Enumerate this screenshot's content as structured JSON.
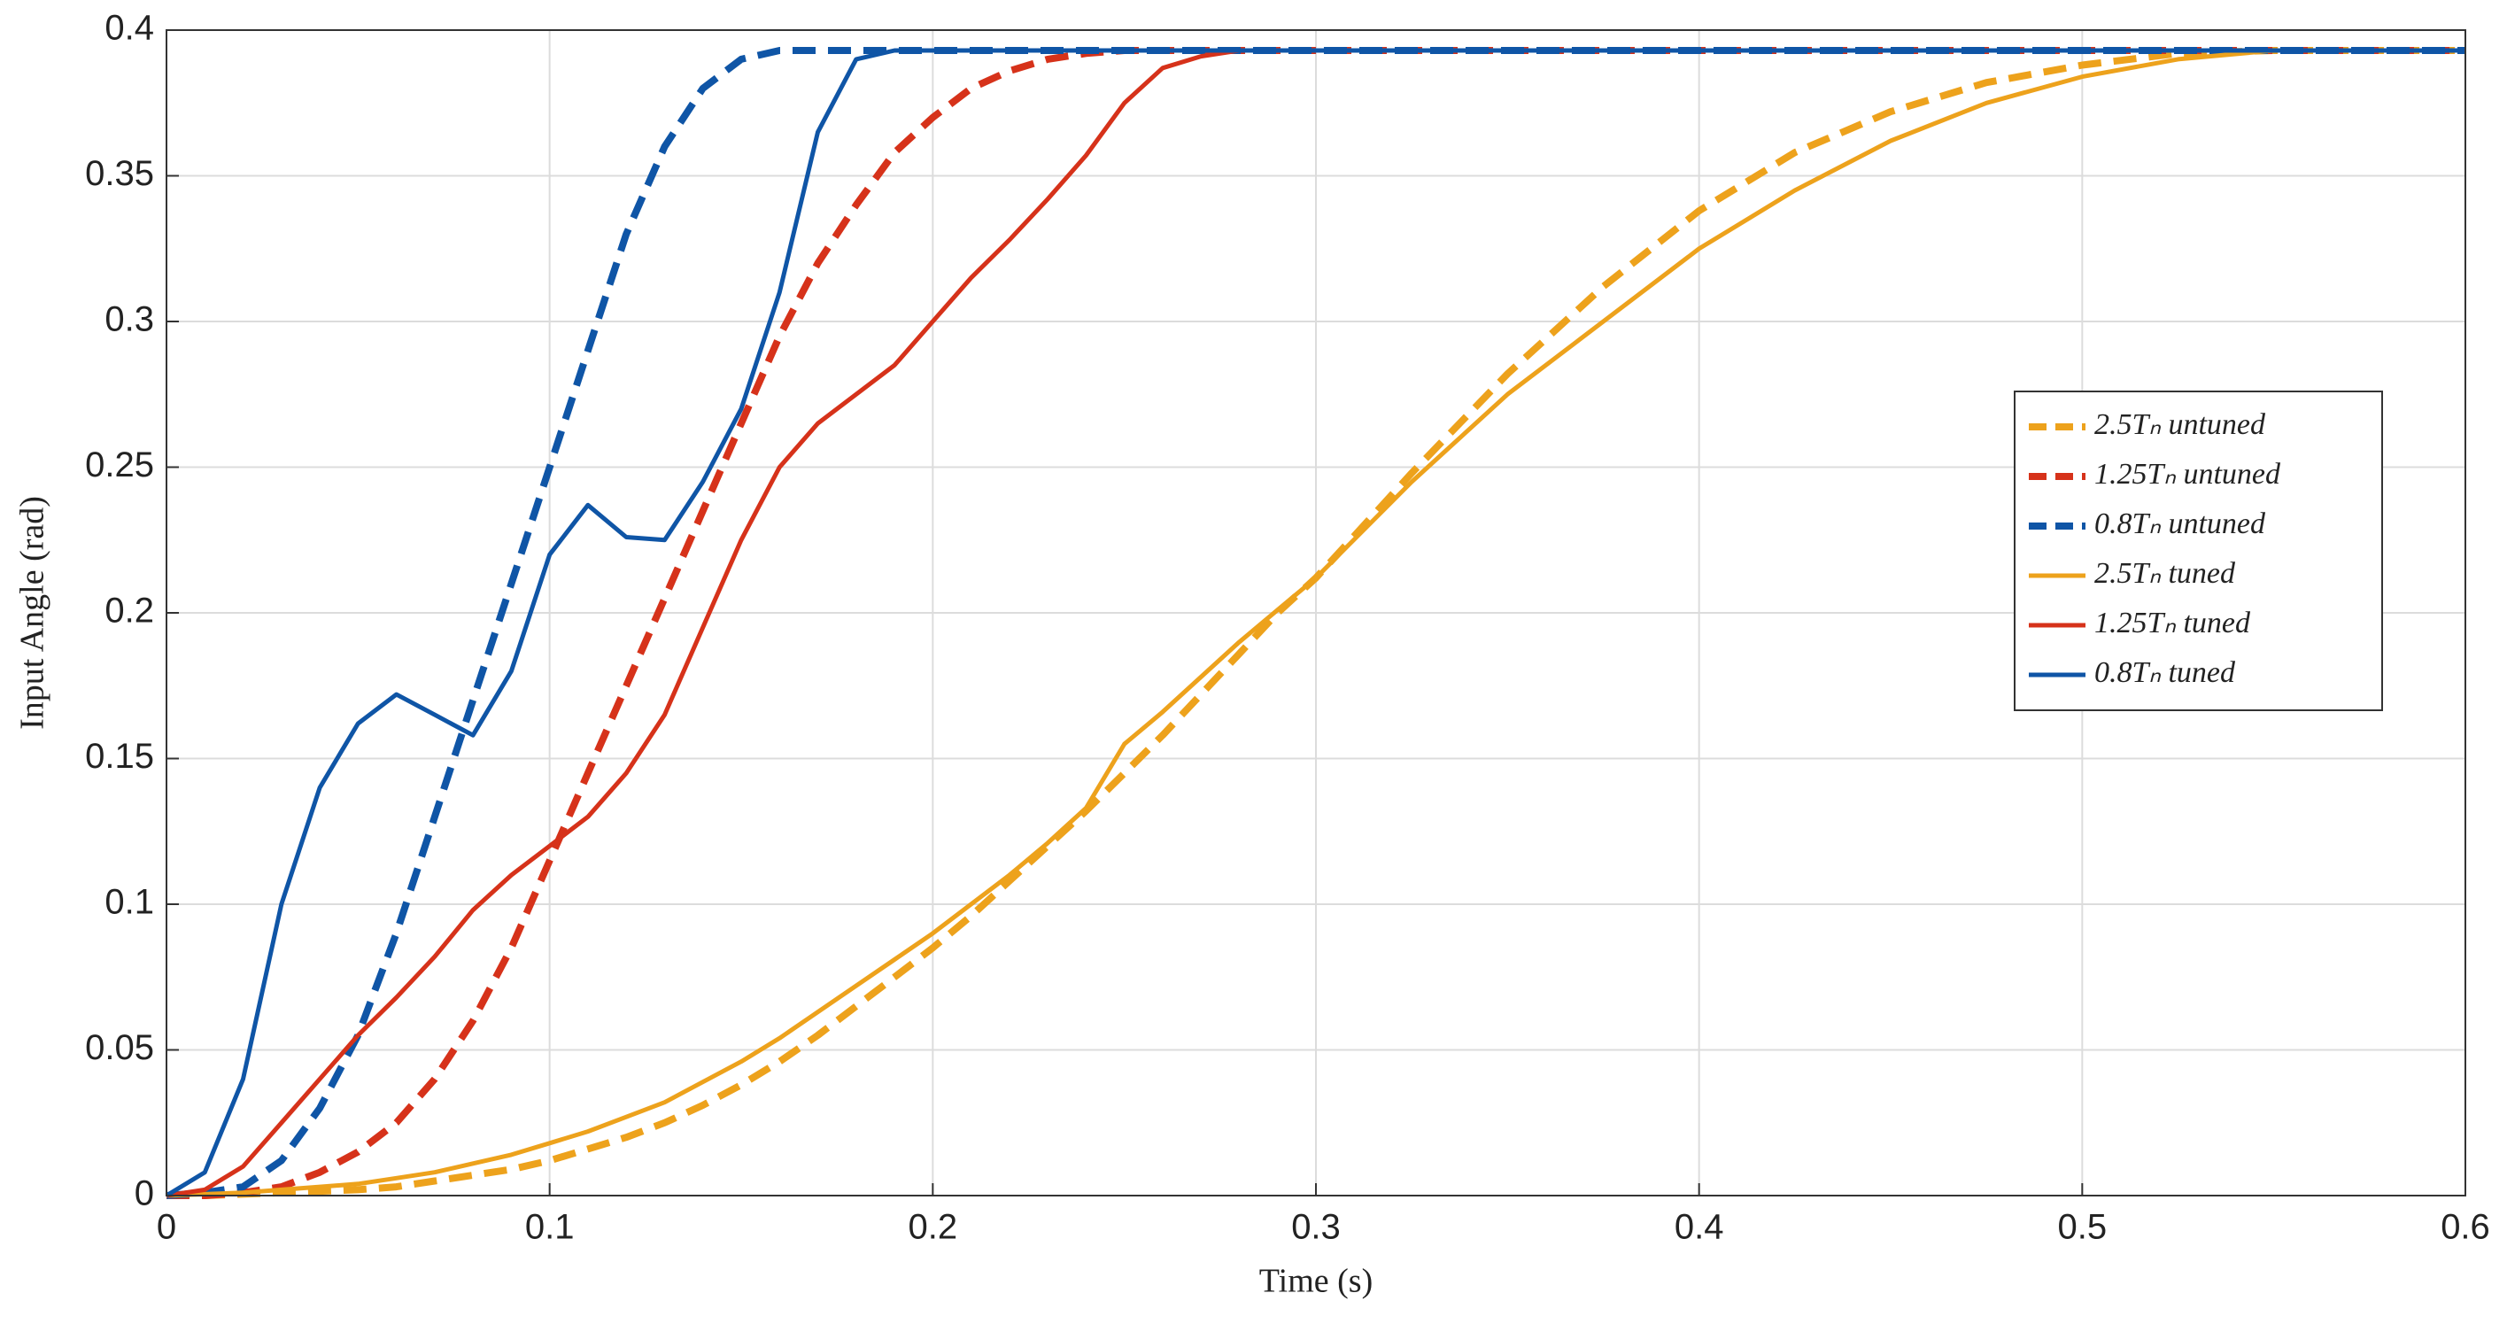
{
  "chart_data": {
    "type": "line",
    "xlabel": "Time (s)",
    "ylabel": "Input Angle (rad)",
    "x": [
      0,
      0.01,
      0.02,
      0.03,
      0.04,
      0.05,
      0.06,
      0.07,
      0.08,
      0.09,
      0.1,
      0.11,
      0.12,
      0.13,
      0.14,
      0.15,
      0.16,
      0.17,
      0.18,
      0.19,
      0.2,
      0.21,
      0.22,
      0.23,
      0.24,
      0.25,
      0.26,
      0.27,
      0.28,
      0.29,
      0.3,
      0.325,
      0.35,
      0.375,
      0.4,
      0.425,
      0.45,
      0.475,
      0.5,
      0.525,
      0.55,
      0.575,
      0.6
    ],
    "series": [
      {
        "name": "2.5Tₙ untuned",
        "color": "#EDA21C",
        "linestyle": "dashed",
        "values": [
          0,
          0,
          0.0005,
          0.001,
          0.0015,
          0.002,
          0.003,
          0.005,
          0.007,
          0.009,
          0.012,
          0.016,
          0.02,
          0.025,
          0.031,
          0.038,
          0.046,
          0.055,
          0.065,
          0.075,
          0.085,
          0.096,
          0.108,
          0.12,
          0.132,
          0.145,
          0.158,
          0.172,
          0.186,
          0.2,
          0.212,
          0.248,
          0.282,
          0.312,
          0.338,
          0.358,
          0.372,
          0.382,
          0.388,
          0.392,
          0.393,
          0.393,
          0.393
        ]
      },
      {
        "name": "1.25Tₙ untuned",
        "color": "#D6321A",
        "linestyle": "dashed",
        "values": [
          0,
          0,
          0.001,
          0.003,
          0.008,
          0.015,
          0.025,
          0.04,
          0.06,
          0.085,
          0.115,
          0.145,
          0.175,
          0.205,
          0.235,
          0.265,
          0.295,
          0.32,
          0.34,
          0.358,
          0.37,
          0.38,
          0.386,
          0.39,
          0.392,
          0.393,
          0.393,
          0.393,
          0.393,
          0.393,
          0.393,
          0.393,
          0.393,
          0.393,
          0.393,
          0.393,
          0.393,
          0.393,
          0.393,
          0.393,
          0.393,
          0.393,
          0.393
        ]
      },
      {
        "name": "0.8Tₙ untuned",
        "color": "#0F55A6",
        "linestyle": "dashed",
        "values": [
          0,
          0.001,
          0.003,
          0.012,
          0.03,
          0.055,
          0.09,
          0.13,
          0.17,
          0.21,
          0.25,
          0.29,
          0.33,
          0.36,
          0.38,
          0.39,
          0.393,
          0.393,
          0.393,
          0.393,
          0.393,
          0.393,
          0.393,
          0.393,
          0.393,
          0.393,
          0.393,
          0.393,
          0.393,
          0.393,
          0.393,
          0.393,
          0.393,
          0.393,
          0.393,
          0.393,
          0.393,
          0.393,
          0.393,
          0.393,
          0.393,
          0.393,
          0.393
        ]
      },
      {
        "name": "2.5Tₙ tuned",
        "color": "#EDA21C",
        "linestyle": "solid",
        "values": [
          0,
          0.0005,
          0.001,
          0.002,
          0.003,
          0.004,
          0.006,
          0.008,
          0.011,
          0.014,
          0.018,
          0.022,
          0.027,
          0.032,
          0.039,
          0.046,
          0.054,
          0.063,
          0.072,
          0.081,
          0.09,
          0.1,
          0.11,
          0.121,
          0.133,
          0.155,
          0.166,
          0.178,
          0.19,
          0.201,
          0.212,
          0.245,
          0.275,
          0.3,
          0.325,
          0.345,
          0.362,
          0.375,
          0.384,
          0.39,
          0.393,
          0.393,
          0.393
        ]
      },
      {
        "name": "1.25Tₙ tuned",
        "color": "#D6321A",
        "linestyle": "solid",
        "values": [
          0,
          0.002,
          0.01,
          0.025,
          0.04,
          0.055,
          0.068,
          0.082,
          0.098,
          0.11,
          0.12,
          0.13,
          0.145,
          0.165,
          0.195,
          0.225,
          0.25,
          0.265,
          0.275,
          0.285,
          0.3,
          0.315,
          0.328,
          0.342,
          0.357,
          0.375,
          0.387,
          0.391,
          0.393,
          0.393,
          0.393,
          0.393,
          0.393,
          0.393,
          0.393,
          0.393,
          0.393,
          0.393,
          0.393,
          0.393,
          0.393,
          0.393,
          0.393
        ]
      },
      {
        "name": "0.8Tₙ tuned",
        "color": "#0F55A6",
        "linestyle": "solid",
        "values": [
          0,
          0.008,
          0.04,
          0.1,
          0.14,
          0.162,
          0.172,
          0.165,
          0.158,
          0.18,
          0.22,
          0.237,
          0.226,
          0.225,
          0.245,
          0.27,
          0.31,
          0.365,
          0.39,
          0.393,
          0.393,
          0.393,
          0.393,
          0.393,
          0.393,
          0.393,
          0.393,
          0.393,
          0.393,
          0.393,
          0.393,
          0.393,
          0.393,
          0.393,
          0.393,
          0.393,
          0.393,
          0.393,
          0.393,
          0.393,
          0.393,
          0.393,
          0.393
        ]
      }
    ],
    "xlim": [
      0,
      0.6
    ],
    "xticks": [
      0,
      0.1,
      0.2,
      0.3,
      0.4,
      0.5,
      0.6
    ],
    "ylim": [
      0,
      0.4
    ],
    "yticks": [
      0,
      0.05,
      0.1,
      0.15,
      0.2,
      0.25,
      0.3,
      0.35,
      0.4
    ],
    "grid": true,
    "legend_loc": "right"
  }
}
